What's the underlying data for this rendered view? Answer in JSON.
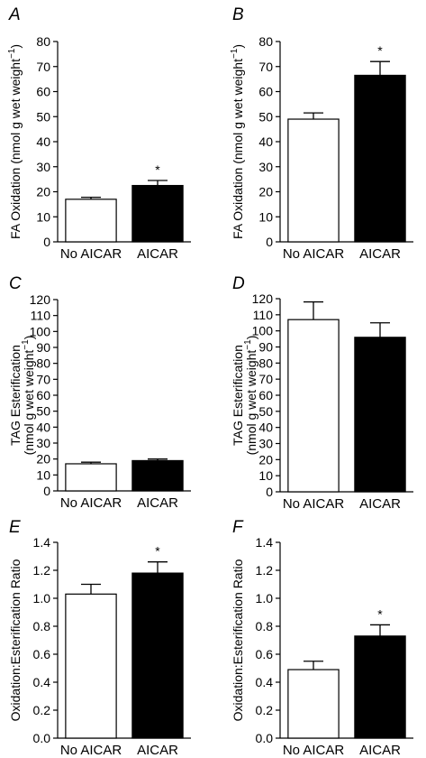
{
  "chart_data": [
    {
      "panel": "A",
      "type": "bar",
      "ylabel_lines": [
        "FA Oxidation (nmol g wet weight"
      ],
      "ylabel_superscript": "−1",
      "ylabel_suffix": ")",
      "categories": [
        "No AICAR",
        "AICAR"
      ],
      "values": [
        17,
        22.5
      ],
      "errors": [
        0.8,
        2
      ],
      "significant": [
        false,
        true
      ],
      "ylim": [
        0,
        80
      ],
      "yticks": [
        0,
        10,
        20,
        30,
        40,
        50,
        60,
        70,
        80
      ],
      "bar_colors": [
        "#ffffff",
        "#000000"
      ]
    },
    {
      "panel": "B",
      "type": "bar",
      "ylabel_lines": [
        "FA Oxidation (nmol g wet weight"
      ],
      "ylabel_superscript": "−1",
      "ylabel_suffix": ")",
      "categories": [
        "No AICAR",
        "AICAR"
      ],
      "values": [
        49,
        66.5
      ],
      "errors": [
        2.5,
        5.5
      ],
      "significant": [
        false,
        true
      ],
      "ylim": [
        0,
        80
      ],
      "yticks": [
        0,
        10,
        20,
        30,
        40,
        50,
        60,
        70,
        80
      ],
      "bar_colors": [
        "#ffffff",
        "#000000"
      ]
    },
    {
      "panel": "C",
      "type": "bar",
      "ylabel_lines": [
        "TAG Esterification",
        "(nmol g wet weight"
      ],
      "ylabel_superscript": "−1",
      "ylabel_suffix": ")",
      "categories": [
        "No AICAR",
        "AICAR"
      ],
      "values": [
        17,
        19
      ],
      "errors": [
        1,
        1
      ],
      "significant": [
        false,
        false
      ],
      "ylim": [
        0,
        120
      ],
      "yticks": [
        0,
        10,
        20,
        30,
        40,
        50,
        60,
        70,
        80,
        90,
        100,
        110,
        120
      ],
      "bar_colors": [
        "#ffffff",
        "#000000"
      ]
    },
    {
      "panel": "D",
      "type": "bar",
      "ylabel_lines": [
        "TAG Esterification",
        "(nmol g wet weight"
      ],
      "ylabel_superscript": "−1",
      "ylabel_suffix": ")",
      "categories": [
        "No AICAR",
        "AICAR"
      ],
      "values": [
        107,
        96
      ],
      "errors": [
        11,
        9
      ],
      "significant": [
        false,
        false
      ],
      "ylim": [
        0,
        120
      ],
      "yticks": [
        0,
        10,
        20,
        30,
        40,
        50,
        60,
        70,
        80,
        90,
        100,
        110,
        120
      ],
      "bar_colors": [
        "#ffffff",
        "#000000"
      ]
    },
    {
      "panel": "E",
      "type": "bar",
      "ylabel_lines": [
        "Oxidation:Esterification Ratio"
      ],
      "ylabel_superscript": "",
      "ylabel_suffix": "",
      "categories": [
        "No AICAR",
        "AICAR"
      ],
      "values": [
        1.03,
        1.18
      ],
      "errors": [
        0.07,
        0.08
      ],
      "significant": [
        false,
        true
      ],
      "ylim": [
        0,
        1.4
      ],
      "yticks": [
        "0.0",
        "0.2",
        "0.4",
        "0.6",
        "0.8",
        "1.0",
        "1.2",
        "1.4"
      ],
      "bar_colors": [
        "#ffffff",
        "#000000"
      ]
    },
    {
      "panel": "F",
      "type": "bar",
      "ylabel_lines": [
        "Oxidation:Esterification Ratio"
      ],
      "ylabel_superscript": "",
      "ylabel_suffix": "",
      "categories": [
        "No AICAR",
        "AICAR"
      ],
      "values": [
        0.49,
        0.73
      ],
      "errors": [
        0.06,
        0.08
      ],
      "significant": [
        false,
        true
      ],
      "ylim": [
        0,
        1.4
      ],
      "yticks": [
        "0.0",
        "0.2",
        "0.4",
        "0.6",
        "0.8",
        "1.0",
        "1.2",
        "1.4"
      ],
      "bar_colors": [
        "#ffffff",
        "#000000"
      ]
    }
  ],
  "significance_marker": "*"
}
